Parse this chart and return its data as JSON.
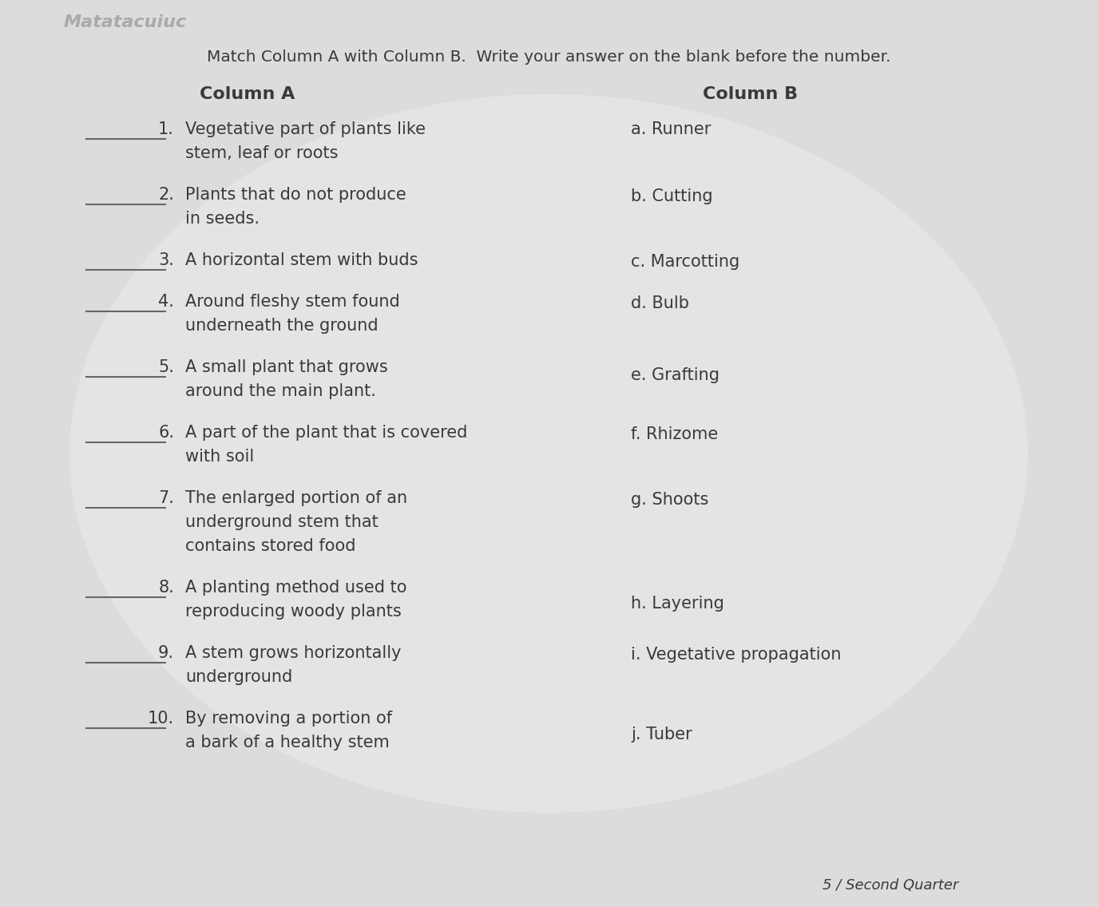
{
  "background_color": "#c8c8c8",
  "paper_color": "#e2e2e2",
  "instruction": "Match Column A with Column B.  Write your answer on the blank before the number.",
  "col_a_header": "Column A",
  "col_b_header": "Column B",
  "col_a_items": [
    {
      "num": "1.",
      "lines": [
        "Vegetative part of plants like",
        "stem, leaf or roots"
      ]
    },
    {
      "num": "2.",
      "lines": [
        "Plants that do not produce",
        "in seeds."
      ]
    },
    {
      "num": "3.",
      "lines": [
        "A horizontal stem with buds"
      ]
    },
    {
      "num": "4.",
      "lines": [
        "Around fleshy stem found",
        "underneath the ground"
      ]
    },
    {
      "num": "5.",
      "lines": [
        "A small plant that grows",
        "around the main plant."
      ]
    },
    {
      "num": "6.",
      "lines": [
        "A part of the plant that is covered",
        "with soil"
      ]
    },
    {
      "num": "7.",
      "lines": [
        "The enlarged portion of an",
        "underground stem that",
        "contains stored food"
      ]
    },
    {
      "num": "8.",
      "lines": [
        "A planting method used to",
        "reproducing woody plants"
      ]
    },
    {
      "num": "9.",
      "lines": [
        "A stem grows horizontally",
        "underground"
      ]
    },
    {
      "num": "10.",
      "lines": [
        "By removing a portion of",
        "a bark of a healthy stem"
      ]
    }
  ],
  "col_b_items": [
    "a. Runner",
    "b. Cutting",
    "c. Marcotting",
    "d. Bulb",
    "e. Grafting",
    "f. Rhizome",
    "g. Shoots",
    "h. Layering",
    "i. Vegetative propagation",
    "j. Tuber"
  ],
  "footer": "Second Quarter",
  "text_color": "#3a3a3a",
  "line_color": "#666666",
  "logo_text": "Matatacuiuc"
}
